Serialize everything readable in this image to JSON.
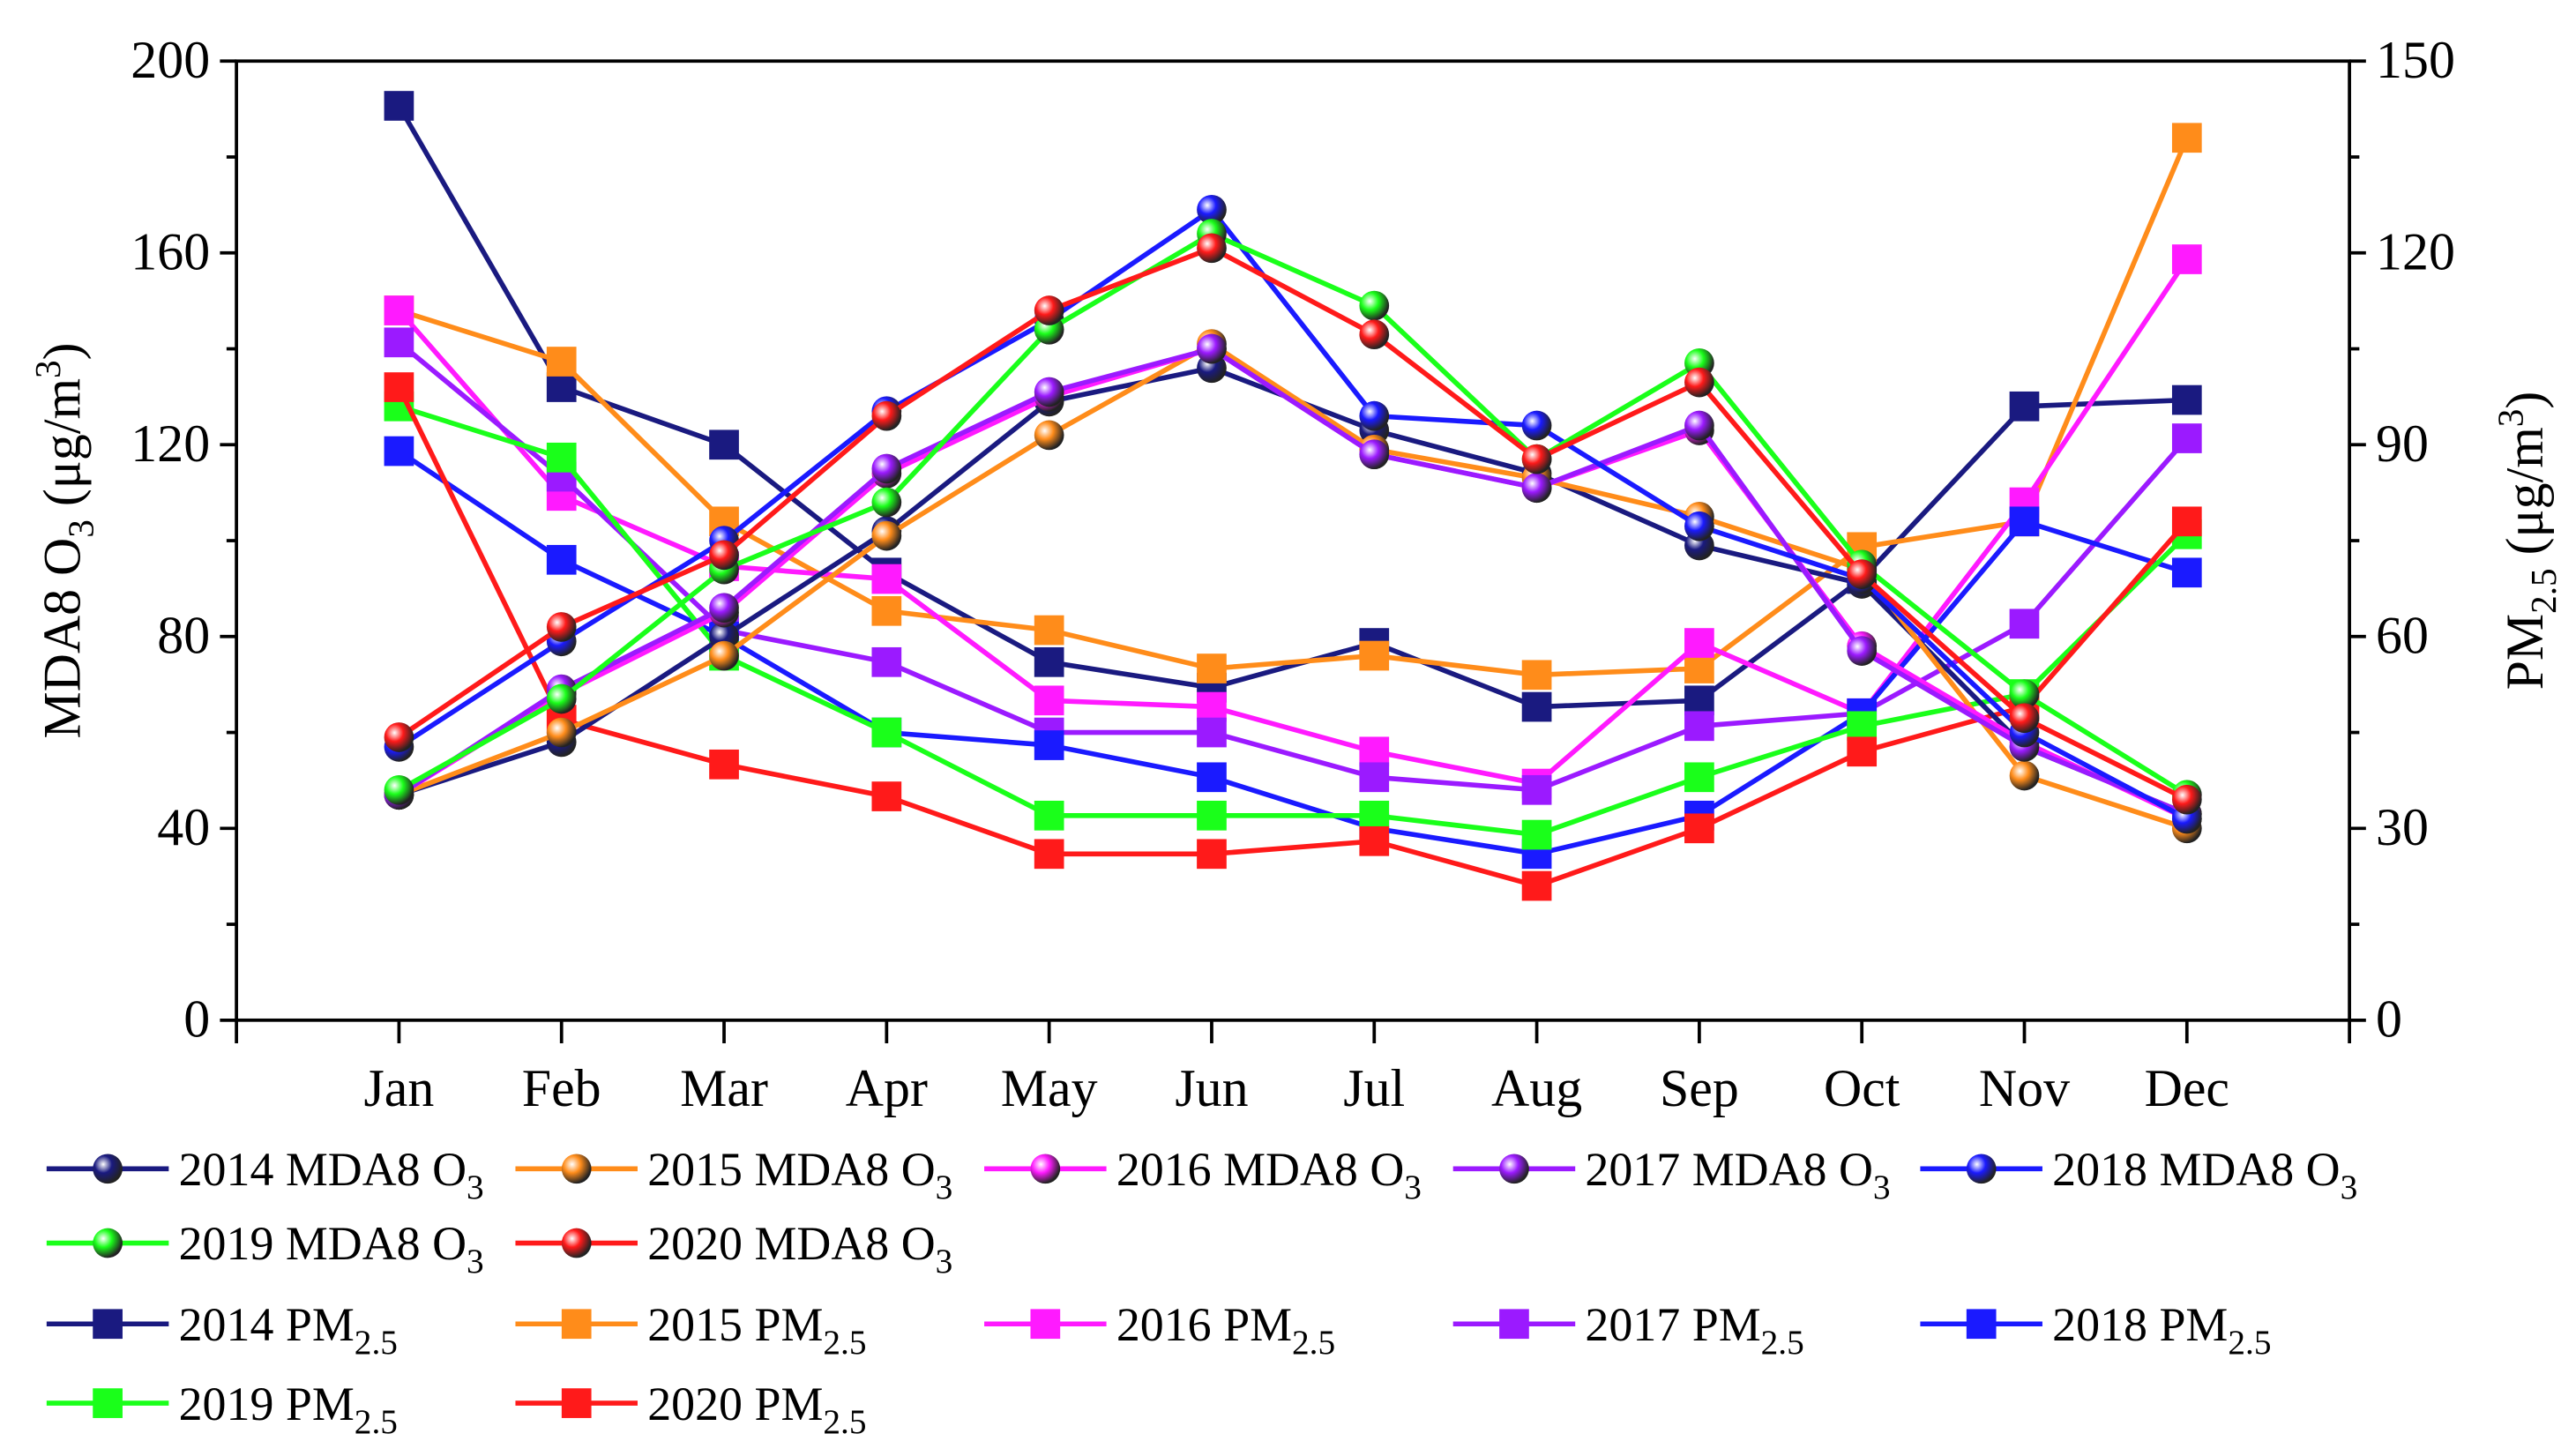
{
  "chart_data": {
    "type": "line",
    "categories": [
      "Jan",
      "Feb",
      "Mar",
      "Apr",
      "May",
      "Jun",
      "Jul",
      "Aug",
      "Sep",
      "Oct",
      "Nov",
      "Dec"
    ],
    "ylabel": {
      "base": "MDA8 O",
      "sub": "3",
      "mid": " (μg/m",
      "sup": "3",
      "end": ")"
    },
    "y2label": {
      "base": "PM",
      "sub": "2.5",
      "mid": " (μg/m",
      "sup": "3",
      "end": ")"
    },
    "ylim": [
      0,
      200
    ],
    "y2lim": [
      0,
      150
    ],
    "yticks": [
      "0",
      "40",
      "80",
      "120",
      "160",
      "200"
    ],
    "y2ticks": [
      "0",
      "30",
      "60",
      "90",
      "120",
      "150"
    ],
    "grid": false,
    "legend_placement": "bottom",
    "series": [
      {
        "name": "2014 MDA8 O3",
        "label": "2014 MDA8 O",
        "sub": "3",
        "axis": "left",
        "marker": "circle",
        "color": "#1a1a80",
        "values": [
          47,
          58,
          80,
          102,
          129,
          136,
          123,
          114,
          99,
          91,
          57,
          43
        ]
      },
      {
        "name": "2015 MDA8 O3",
        "label": "2015 MDA8 O",
        "sub": "3",
        "axis": "left",
        "marker": "circle",
        "color": "#ff8c1a",
        "values": [
          47,
          60,
          76,
          101,
          122,
          141,
          119,
          113,
          105,
          94,
          51,
          40
        ]
      },
      {
        "name": "2016 MDA8 O3",
        "label": "2016 MDA8 O",
        "sub": "3",
        "axis": "left",
        "marker": "circle",
        "color": "#ff1aff",
        "values": [
          47,
          68,
          85,
          114,
          130,
          140,
          118,
          111,
          123,
          78,
          58,
          42
        ]
      },
      {
        "name": "2017 MDA8 O3",
        "label": "2017 MDA8 O",
        "sub": "3",
        "axis": "left",
        "marker": "circle",
        "color": "#9b1aff",
        "values": [
          47,
          69,
          86,
          115,
          131,
          140,
          118,
          111,
          124,
          77,
          57,
          43
        ]
      },
      {
        "name": "2018 MDA8 O3",
        "label": "2018 MDA8 O",
        "sub": "3",
        "axis": "left",
        "marker": "circle",
        "color": "#1a1aff",
        "values": [
          57,
          79,
          100,
          127,
          146,
          169,
          126,
          124,
          103,
          92,
          60,
          42
        ]
      },
      {
        "name": "2019 MDA8 O3",
        "label": "2019 MDA8 O",
        "sub": "3",
        "axis": "left",
        "marker": "circle",
        "color": "#1aff1a",
        "values": [
          48,
          67,
          94,
          108,
          144,
          164,
          149,
          117,
          137,
          95,
          68,
          47
        ]
      },
      {
        "name": "2020 MDA8 O3",
        "label": "2020 MDA8 O",
        "sub": "3",
        "axis": "left",
        "marker": "circle",
        "color": "#ff1a1a",
        "values": [
          59,
          82,
          97,
          126,
          148,
          161,
          143,
          117,
          133,
          93,
          63,
          46
        ]
      },
      {
        "name": "2014 PM2.5",
        "label": "2014 PM",
        "sub": "2.5",
        "axis": "right",
        "marker": "square",
        "color": "#1a1a80",
        "values": [
          143,
          99,
          90,
          70,
          56,
          52,
          59,
          49,
          50,
          69,
          96,
          97
        ]
      },
      {
        "name": "2015 PM2.5",
        "label": "2015 PM",
        "sub": "2.5",
        "axis": "right",
        "marker": "square",
        "color": "#ff8c1a",
        "values": [
          111,
          103,
          78,
          64,
          61,
          55,
          57,
          54,
          55,
          74,
          78,
          138
        ]
      },
      {
        "name": "2016 PM2.5",
        "label": "2016 PM",
        "sub": "2.5",
        "axis": "right",
        "marker": "square",
        "color": "#ff1aff",
        "values": [
          111,
          82,
          71,
          69,
          50,
          49,
          42,
          37,
          59,
          48,
          81,
          119
        ]
      },
      {
        "name": "2017 PM2.5",
        "label": "2017 PM",
        "sub": "2.5",
        "axis": "right",
        "marker": "square",
        "color": "#9b1aff",
        "values": [
          106,
          85,
          61,
          56,
          45,
          45,
          38,
          36,
          46,
          48,
          62,
          91
        ]
      },
      {
        "name": "2018 PM2.5",
        "label": "2018 PM",
        "sub": "2.5",
        "axis": "right",
        "marker": "square",
        "color": "#1a1aff",
        "values": [
          89,
          72,
          60,
          45,
          43,
          38,
          30,
          26,
          32,
          48,
          78,
          70
        ]
      },
      {
        "name": "2019 PM2.5",
        "label": "2019 PM",
        "sub": "2.5",
        "axis": "right",
        "marker": "square",
        "color": "#1aff1a",
        "values": [
          96,
          88,
          57,
          45,
          32,
          32,
          32,
          29,
          38,
          46,
          51,
          76
        ]
      },
      {
        "name": "2020 PM2.5",
        "label": "2020 PM",
        "sub": "2.5",
        "axis": "right",
        "marker": "square",
        "color": "#ff1a1a",
        "values": [
          99,
          47,
          40,
          35,
          26,
          26,
          28,
          21,
          30,
          42,
          49,
          78
        ]
      }
    ]
  }
}
